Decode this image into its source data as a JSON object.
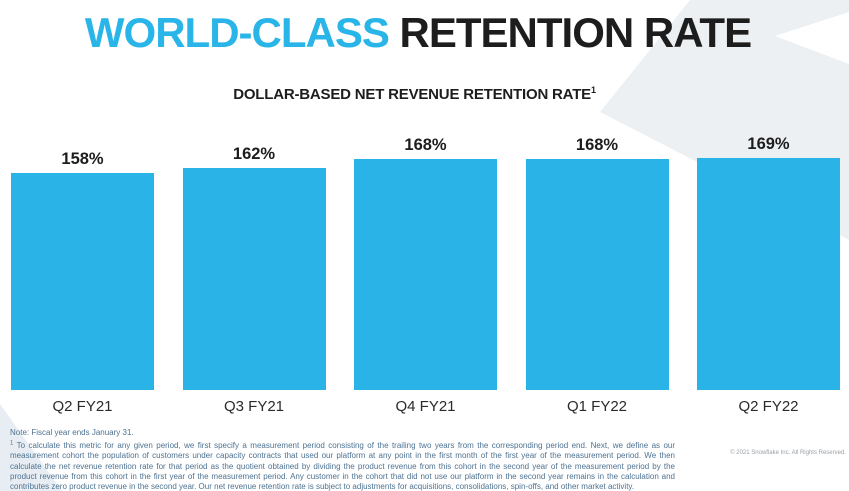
{
  "slide": {
    "title": {
      "highlight": "WORLD-CLASS",
      "rest": " RETENTION RATE"
    },
    "subtitle": {
      "text": "DOLLAR-BASED NET REVENUE RETENTION RATE",
      "superscript": "1"
    },
    "footnote": {
      "note": "Note: Fiscal year ends January 31.",
      "marker": "1",
      "text": "To calculate this metric for any given period, we first specify a measurement period consisting of the trailing two years from the corresponding period end. Next, we define as our measurement cohort the population of customers under capacity contracts that used our platform at any point in the first month of the first year of the measurement period. We then calculate the net revenue retention rate for that period as the quotient obtained by dividing the product revenue from this cohort in the second year of the measurement period by the product revenue from this cohort in the first year of the measurement period. Any customer in the cohort that did not use our platform in the second year remains in the calculation and contributes zero product revenue in the second year. Our net revenue retention rate is subject to adjustments for acquisitions, consolidations, spin-offs, and other market activity."
    },
    "copyright": "© 2021 Snowflake Inc. All Rights Reserved."
  },
  "colors": {
    "accent": "#29B3E6",
    "title_highlight": "#29B5E8",
    "title_text": "#1D1D1D",
    "axis_text": "#2A2A2A",
    "footnote_text": "#4D7292",
    "watermark_gray": "#EDF0F2",
    "watermark_blue": "#E7EDF2",
    "copyright_text": "#9AA0A6"
  },
  "chart_data": {
    "type": "bar",
    "title": "DOLLAR-BASED NET REVENUE RETENTION RATE",
    "categories": [
      "Q2 FY21",
      "Q3 FY21",
      "Q4 FY21",
      "Q1 FY22",
      "Q2 FY22"
    ],
    "values": [
      158,
      162,
      168,
      168,
      169
    ],
    "value_labels": [
      "158%",
      "162%",
      "168%",
      "168%",
      "169%"
    ],
    "xlabel": "",
    "ylabel": "",
    "ylim": [
      0,
      184
    ],
    "grid": false,
    "legend": false,
    "axes_visible": false,
    "bar_color": "#29B3E6",
    "data_labels_position": "above-bar"
  }
}
